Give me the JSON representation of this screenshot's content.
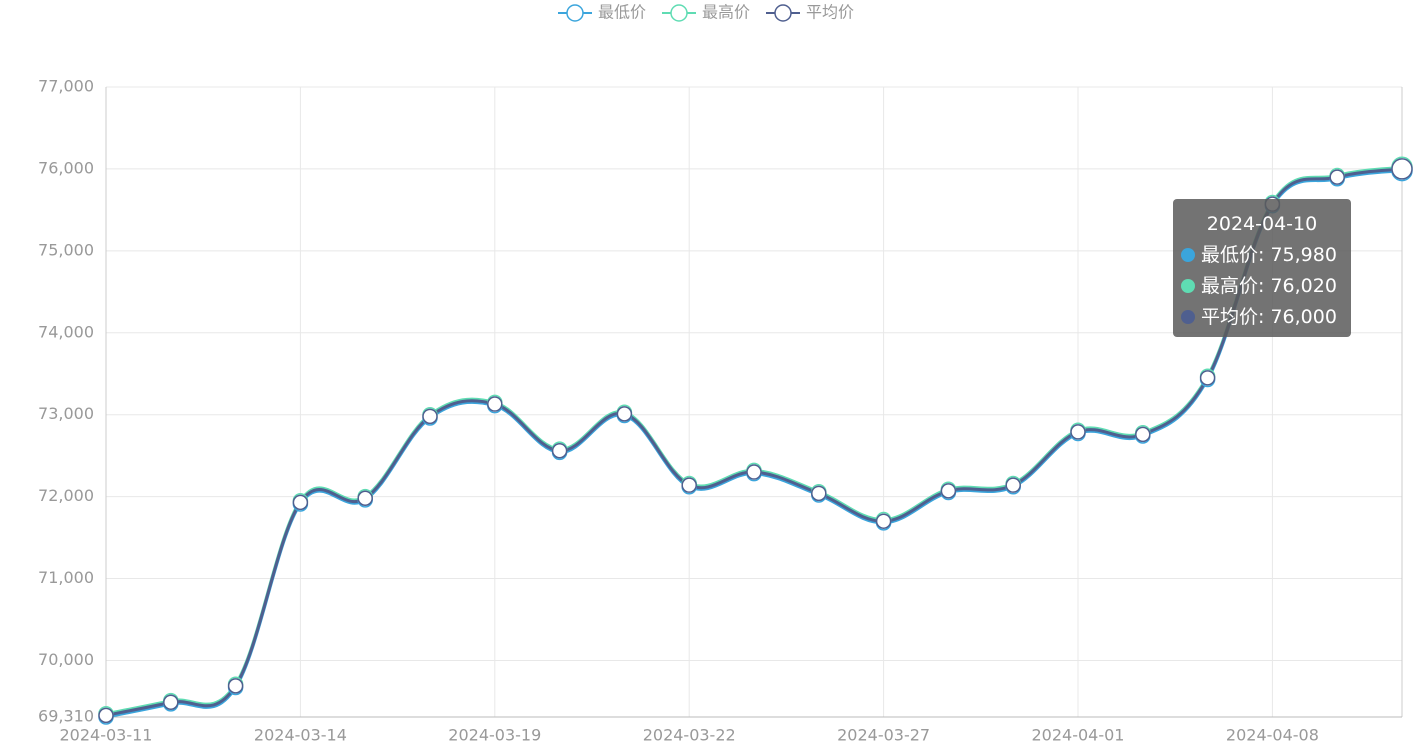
{
  "chart_data": {
    "type": "line",
    "categories": [
      "2024-03-11",
      null,
      null,
      "2024-03-14",
      null,
      null,
      "2024-03-19",
      null,
      null,
      "2024-03-22",
      null,
      null,
      "2024-03-27",
      null,
      null,
      "2024-04-01",
      null,
      null,
      "2024-04-08",
      null,
      "2024-04-10"
    ],
    "series": [
      {
        "name": "最低价",
        "color": "#3ba5dc",
        "values": [
          69310,
          69470,
          69670,
          71910,
          71960,
          72960,
          73110,
          72540,
          72990,
          72120,
          72280,
          72020,
          71680,
          72050,
          72120,
          72770,
          72740,
          73430,
          75550,
          75880,
          75980
        ]
      },
      {
        "name": "最高价",
        "color": "#5fdcb3",
        "values": [
          69350,
          69510,
          69710,
          71950,
          72000,
          73000,
          73150,
          72580,
          73030,
          72160,
          72320,
          72060,
          71720,
          72090,
          72160,
          72810,
          72780,
          73470,
          75590,
          75920,
          76020
        ]
      },
      {
        "name": "平均价",
        "color": "#4f5f8f",
        "values": [
          69330,
          69490,
          69690,
          71930,
          71980,
          72980,
          73130,
          72560,
          73010,
          72140,
          72300,
          72040,
          71700,
          72070,
          72140,
          72790,
          72760,
          73450,
          75570,
          75900,
          76000
        ]
      }
    ],
    "ylim": [
      69310,
      77000
    ],
    "yticks": [
      {
        "value": 69310,
        "label": "69,310"
      },
      {
        "value": 70000,
        "label": "70,000"
      },
      {
        "value": 71000,
        "label": "71,000"
      },
      {
        "value": 72000,
        "label": "72,000"
      },
      {
        "value": 73000,
        "label": "73,000"
      },
      {
        "value": 74000,
        "label": "74,000"
      },
      {
        "value": 75000,
        "label": "75,000"
      },
      {
        "value": 76000,
        "label": "76,000"
      },
      {
        "value": 77000,
        "label": "77,000"
      }
    ],
    "grid": true,
    "legend": "top",
    "tooltip": {
      "rows": [
        "最低价: 75,980",
        "最高价: 76,020",
        "平均价: 76,000"
      ]
    }
  }
}
